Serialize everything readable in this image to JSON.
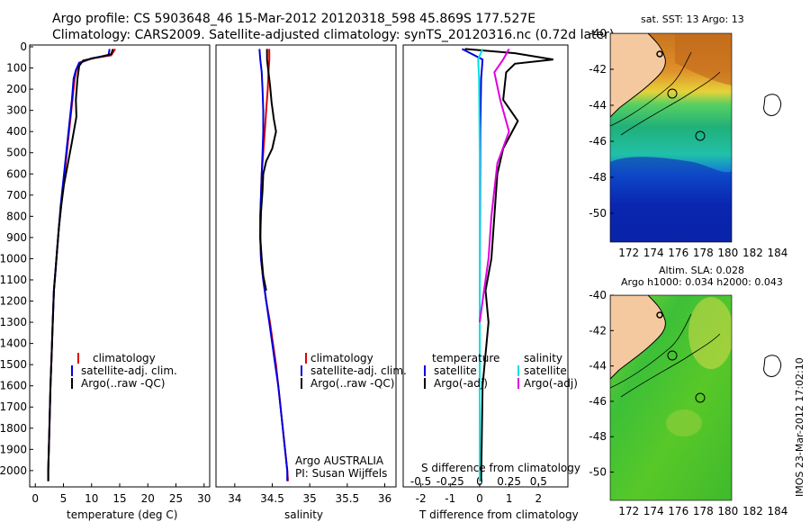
{
  "header": {
    "line1": "Argo profile: CS 5903648_46 15-Mar-2012 20120318_598 45.869S 177.527E",
    "line2": "Climatology: CARS2009. Satellite-adjusted climatology: synTS_20120316.nc (0.72d later)"
  },
  "side_stamp": "IMOS 23-Mar-2012 17:02:10",
  "colors": {
    "climatology": "#e00000",
    "satellite": "#0000e0",
    "argo": "#000000",
    "salinity_satellite": "#00e0e0",
    "salinity_argo": "#e000e0",
    "land": "#f5c9a0"
  },
  "chart_data": [
    {
      "type": "line",
      "xlabel": "temperature (deg C)",
      "ylabel": "",
      "xlim": [
        -1,
        31
      ],
      "ylim": [
        2060,
        0
      ],
      "xticks": [
        "0",
        "5",
        "10",
        "15",
        "20",
        "25",
        "30"
      ],
      "yticks": [
        "0",
        "100",
        "200",
        "300",
        "400",
        "500",
        "600",
        "700",
        "800",
        "900",
        "1000",
        "1100",
        "1200",
        "1300",
        "1400",
        "1500",
        "1600",
        "1700",
        "1800",
        "1900",
        "2000"
      ],
      "legend": [
        "climatology",
        "satellite-adj. clim.",
        "Argo(..raw -QC)"
      ],
      "series": [
        {
          "name": "climatology",
          "points": [
            [
              14.2,
              10
            ],
            [
              13.5,
              40
            ],
            [
              10,
              55
            ],
            [
              8,
              75
            ],
            [
              7.3,
              110
            ],
            [
              7,
              150
            ],
            [
              6.6,
              250
            ],
            [
              6.2,
              350
            ],
            [
              5.8,
              450
            ],
            [
              5.4,
              550
            ],
            [
              5,
              650
            ],
            [
              4.6,
              750
            ],
            [
              4.2,
              850
            ],
            [
              3.9,
              950
            ],
            [
              3.6,
              1050
            ],
            [
              3.3,
              1150
            ],
            [
              3.1,
              1300
            ],
            [
              2.9,
              1450
            ],
            [
              2.7,
              1600
            ],
            [
              2.5,
              1800
            ],
            [
              2.3,
              2000
            ],
            [
              2.3,
              2050
            ]
          ]
        },
        {
          "name": "satellite-adj. clim.",
          "points": [
            [
              13.2,
              10
            ],
            [
              13,
              40
            ],
            [
              10,
              55
            ],
            [
              7.8,
              75
            ],
            [
              7.2,
              110
            ],
            [
              6.8,
              150
            ],
            [
              6.5,
              250
            ],
            [
              6.1,
              350
            ],
            [
              5.7,
              450
            ],
            [
              5.3,
              550
            ],
            [
              4.9,
              650
            ],
            [
              4.5,
              750
            ],
            [
              4.2,
              850
            ],
            [
              3.9,
              950
            ],
            [
              3.6,
              1050
            ],
            [
              3.3,
              1150
            ],
            [
              3.1,
              1300
            ],
            [
              2.9,
              1450
            ],
            [
              2.7,
              1600
            ],
            [
              2.5,
              1800
            ],
            [
              2.3,
              2000
            ],
            [
              2.3,
              2050
            ]
          ]
        },
        {
          "name": "Argo(..raw -QC)",
          "points": [
            [
              13.8,
              10
            ],
            [
              13.5,
              35
            ],
            [
              11,
              50
            ],
            [
              8.5,
              65
            ],
            [
              7.8,
              90
            ],
            [
              7.5,
              150
            ],
            [
              7.2,
              250
            ],
            [
              7.3,
              330
            ],
            [
              6.5,
              450
            ],
            [
              5.8,
              550
            ],
            [
              5.1,
              650
            ],
            [
              4.6,
              750
            ],
            [
              4.2,
              850
            ],
            [
              3.9,
              950
            ],
            [
              3.6,
              1050
            ],
            [
              3.3,
              1150
            ],
            [
              3.1,
              1300
            ],
            [
              2.9,
              1450
            ],
            [
              2.7,
              1600
            ],
            [
              2.5,
              1800
            ],
            [
              2.3,
              2000
            ],
            [
              2.3,
              2050
            ]
          ]
        }
      ]
    },
    {
      "type": "line",
      "xlabel": "salinity",
      "xlim": [
        33.75,
        36.15
      ],
      "ylim": [
        2060,
        0
      ],
      "xticks": [
        "34",
        "34.5",
        "35",
        "35.5",
        "36"
      ],
      "legend": [
        "climatology",
        "satellite-adj. clim.",
        "Argo(..raw -QC)"
      ],
      "annotation": [
        "Argo AUSTRALIA",
        "PI: Susan Wijffels"
      ],
      "series": [
        {
          "name": "climatology",
          "points": [
            [
              34.46,
              10
            ],
            [
              34.46,
              60
            ],
            [
              34.45,
              120
            ],
            [
              34.44,
              200
            ],
            [
              34.42,
              300
            ],
            [
              34.4,
              400
            ],
            [
              34.38,
              500
            ],
            [
              34.36,
              600
            ],
            [
              34.35,
              700
            ],
            [
              34.34,
              800
            ],
            [
              34.34,
              900
            ],
            [
              34.35,
              1000
            ],
            [
              34.38,
              1100
            ],
            [
              34.42,
              1200
            ],
            [
              34.47,
              1300
            ],
            [
              34.51,
              1400
            ],
            [
              34.55,
              1500
            ],
            [
              34.58,
              1600
            ],
            [
              34.61,
              1700
            ],
            [
              34.64,
              1800
            ],
            [
              34.67,
              1900
            ],
            [
              34.7,
              2000
            ],
            [
              34.71,
              2050
            ]
          ]
        },
        {
          "name": "satellite-adj. clim.",
          "points": [
            [
              34.33,
              10
            ],
            [
              34.34,
              60
            ],
            [
              34.36,
              120
            ],
            [
              34.37,
              200
            ],
            [
              34.38,
              300
            ],
            [
              34.38,
              400
            ],
            [
              34.37,
              500
            ],
            [
              34.36,
              600
            ],
            [
              34.35,
              700
            ],
            [
              34.34,
              800
            ],
            [
              34.34,
              900
            ],
            [
              34.35,
              1000
            ],
            [
              34.38,
              1100
            ],
            [
              34.42,
              1200
            ],
            [
              34.46,
              1300
            ],
            [
              34.5,
              1400
            ],
            [
              34.54,
              1500
            ],
            [
              34.58,
              1600
            ],
            [
              34.61,
              1700
            ],
            [
              34.64,
              1800
            ],
            [
              34.67,
              1900
            ],
            [
              34.7,
              2000
            ],
            [
              34.7,
              2050
            ]
          ]
        },
        {
          "name": "Argo(..raw -QC)",
          "points": [
            [
              34.43,
              10
            ],
            [
              34.43,
              60
            ],
            [
              34.45,
              120
            ],
            [
              34.47,
              180
            ],
            [
              34.49,
              260
            ],
            [
              34.52,
              340
            ],
            [
              34.55,
              400
            ],
            [
              34.5,
              480
            ],
            [
              34.42,
              540
            ],
            [
              34.38,
              600
            ],
            [
              34.37,
              680
            ],
            [
              34.35,
              780
            ],
            [
              34.34,
              900
            ],
            [
              34.36,
              1000
            ],
            [
              34.38,
              1080
            ],
            [
              34.42,
              1150
            ]
          ]
        }
      ]
    },
    {
      "type": "line",
      "xlabel": "T difference from climatology",
      "top_axis_label": "S difference from climatology",
      "xlim": [
        -2.6,
        3.0
      ],
      "ylim": [
        2060,
        0
      ],
      "xticks": [
        "-2",
        "-1",
        "0",
        "1",
        "2"
      ],
      "top_ticks": [
        "-0.5",
        "-0.25",
        "0",
        "0.25",
        "0.5"
      ],
      "legend_titles": [
        "temperature",
        "salinity"
      ],
      "legend": [
        "satellite",
        "Argo(-adj)",
        "satellite",
        "Argo(-adj)"
      ],
      "series": [
        {
          "name": "satellite",
          "points": [
            [
              -0.6,
              10
            ],
            [
              0.1,
              60
            ],
            [
              0.05,
              150
            ],
            [
              0.02,
              400
            ],
            [
              0.01,
              800
            ],
            [
              0,
              1200
            ],
            [
              0,
              2050
            ]
          ]
        },
        {
          "name": "Argo(-adj)",
          "points": [
            [
              -0.5,
              10
            ],
            [
              1.2,
              30
            ],
            [
              2.5,
              60
            ],
            [
              1.2,
              80
            ],
            [
              0.9,
              120
            ],
            [
              0.8,
              250
            ],
            [
              1.3,
              350
            ],
            [
              0.8,
              480
            ],
            [
              0.6,
              600
            ],
            [
              0.5,
              800
            ],
            [
              0.4,
              1000
            ],
            [
              0.2,
              1150
            ],
            [
              0.3,
              1300
            ],
            [
              0.1,
              1600
            ],
            [
              0.05,
              2050
            ]
          ]
        },
        {
          "name": "satellite",
          "points": [
            [
              0.1,
              10
            ],
            [
              -0.05,
              60
            ],
            [
              -0.02,
              150
            ],
            [
              0,
              500
            ],
            [
              0,
              2050
            ]
          ]
        },
        {
          "name": "Argo(-adj)",
          "points": [
            [
              1.0,
              10
            ],
            [
              0.8,
              60
            ],
            [
              0.5,
              120
            ],
            [
              0.7,
              250
            ],
            [
              1.0,
              400
            ],
            [
              0.6,
              550
            ],
            [
              0.4,
              800
            ],
            [
              0.3,
              1000
            ],
            [
              0.1,
              1200
            ],
            [
              0,
              1300
            ]
          ]
        }
      ]
    },
    {
      "type": "heatmap",
      "title": "sat. SST: 13 Argo: 13",
      "xticks": [
        "172",
        "174",
        "176",
        "178",
        "180",
        "182",
        "184"
      ],
      "yticks": [
        "-40",
        "-42",
        "-44",
        "-46",
        "-48",
        "-50"
      ]
    },
    {
      "type": "heatmap",
      "title": "Altim. SLA: 0.028",
      "subtitle": "Argo h1000: 0.034 h2000: 0.043",
      "xticks": [
        "172",
        "174",
        "176",
        "178",
        "180",
        "182",
        "184"
      ],
      "yticks": [
        "-40",
        "-42",
        "-44",
        "-46",
        "-48",
        "-50"
      ]
    }
  ]
}
